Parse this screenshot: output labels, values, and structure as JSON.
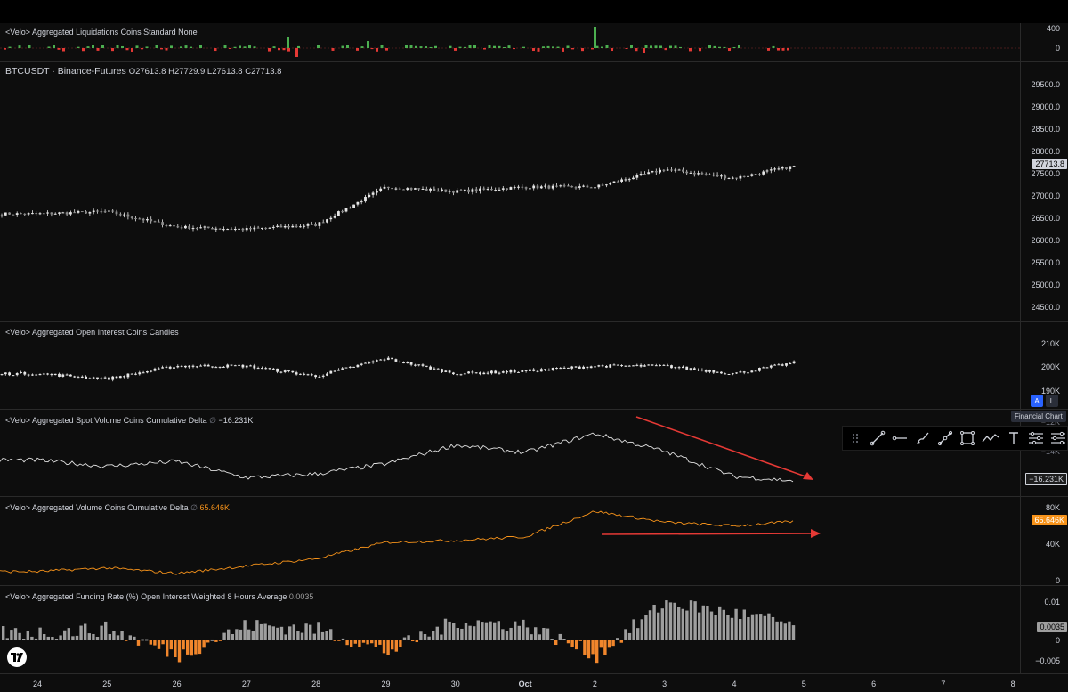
{
  "panes": {
    "liquidations": {
      "title": "<Velo> Aggregated Liquidations Coins Standard None",
      "ticks": [
        "400",
        "0"
      ]
    },
    "price": {
      "symbol": "BTCUSDT · Binance-Futures",
      "open_label": "O",
      "open": "27613.8",
      "high_label": "H",
      "high": "27729.9",
      "low_label": "L",
      "low": "27613.8",
      "close_label": "C",
      "close": "27713.8",
      "last_tag": "27713.8",
      "ticks": [
        "29500.0",
        "29000.0",
        "28500.0",
        "28000.0",
        "27500.0",
        "27000.0",
        "26500.0",
        "26000.0",
        "25500.0",
        "25000.0",
        "24500.0"
      ]
    },
    "open_interest": {
      "title": "<Velo> Aggregated Open Interest Coins Candles",
      "ticks": [
        "210K",
        "200K",
        "190K"
      ]
    },
    "spot_cvd": {
      "title": "<Velo> Aggregated Spot Volume Coins Cumulative Delta",
      "value": "−16.231K",
      "ticks": [
        "−12K",
        "−14K"
      ],
      "last_tag": "−16.231K"
    },
    "volume_cvd": {
      "title": "<Velo> Aggregated Volume Coins Cumulative Delta",
      "value": "65.646K",
      "ticks": [
        "80K",
        "40K",
        "0"
      ],
      "last_tag": "65.646K"
    },
    "funding": {
      "title": "<Velo> Aggregated Funding Rate (%) Open Interest Weighted 8 Hours Average",
      "value": "0.0035",
      "ticks": [
        "0.01",
        "0",
        "−0.005"
      ],
      "last_tag": "0.0035"
    }
  },
  "xaxis": {
    "labels": [
      "24",
      "25",
      "26",
      "27",
      "28",
      "29",
      "30",
      "Oct",
      "2",
      "3",
      "4",
      "5",
      "6",
      "7",
      "8"
    ]
  },
  "toolbar": {
    "tooltip": "Financial Chart",
    "auto_label": "A",
    "log_label": "L",
    "tools": [
      "trend-line-icon",
      "horizontal-ray-icon",
      "brush-icon",
      "connected-line-icon",
      "rectangle-icon",
      "path-icon",
      "text-icon",
      "settings-icon",
      "more-settings-icon"
    ]
  },
  "colors": {
    "up": "#26a69a",
    "down": "#ef5350",
    "candle": "#e6e6e6",
    "orange": "#f7931a",
    "funding_pos": "#9e9e9e",
    "funding_neg": "#f0862c",
    "arrow": "#e53935",
    "liq_green": "#4caf50",
    "liq_red": "#e53935"
  },
  "chart_data": [
    {
      "type": "line",
      "title": "BTCUSDT · Binance-Futures",
      "x": [
        "24",
        "25",
        "26",
        "27",
        "28",
        "29",
        "30",
        "Oct",
        "2",
        "3",
        "4",
        "5"
      ],
      "series": [
        {
          "name": "BTCUSDT",
          "values": [
            26600,
            26650,
            26300,
            26250,
            26350,
            27200,
            27100,
            27200,
            27200,
            27600,
            27400,
            27714
          ]
        }
      ],
      "ylim": [
        24300,
        29800
      ]
    },
    {
      "type": "line",
      "title": "<Velo> Aggregated Open Interest Coins Candles",
      "x": [
        "24",
        "25",
        "26",
        "27",
        "28",
        "29",
        "30",
        "Oct",
        "2",
        "3",
        "4",
        "5"
      ],
      "series": [
        {
          "name": "<Velo> Aggregated Open Interest Coins Candles",
          "values": [
            198000,
            196000,
            201000,
            201000,
            197000,
            204000,
            198000,
            199000,
            201000,
            201000,
            198000,
            203000
          ]
        }
      ],
      "ylim": [
        187000,
        215000
      ]
    },
    {
      "type": "line",
      "title": "<Velo> Aggregated Spot Volume Coins Cumulative Delta",
      "x": [
        "24",
        "25",
        "26",
        "27",
        "28",
        "29",
        "30",
        "Oct",
        "2",
        "3",
        "4",
        "5"
      ],
      "series": [
        {
          "name": "<Velo> Aggregated Spot Volume Coins Cumulative Delta",
          "values": [
            -14.5,
            -15.0,
            -14.6,
            -15.9,
            -15.6,
            -14.8,
            -13.3,
            -13.9,
            -12.4,
            -13.8,
            -15.8,
            -16.2
          ]
        }
      ],
      "ylim": [
        -17,
        -11
      ]
    },
    {
      "type": "line",
      "title": "<Velo> Aggregated Volume Coins Cumulative Delta",
      "x": [
        "24",
        "25",
        "26",
        "27",
        "28",
        "29",
        "30",
        "Oct",
        "2",
        "3",
        "4",
        "5"
      ],
      "series": [
        {
          "name": "<Velo> Aggregated Volume Coins Cumulative Delta",
          "values": [
            10,
            14,
            8,
            16,
            24,
            42,
            44,
            48,
            76,
            64,
            60,
            65.6
          ]
        }
      ],
      "ylim": [
        -5,
        90
      ]
    },
    {
      "type": "bar",
      "title": "<Velo> Aggregated Funding Rate (%) Open Interest Weighted 8 Hours Average",
      "x": [
        "24",
        "25",
        "26",
        "27",
        "28",
        "29",
        "30",
        "Oct",
        "2",
        "3",
        "4",
        "5"
      ],
      "values": [
        0.002,
        0.003,
        -0.004,
        0.004,
        0.003,
        -0.003,
        0.005,
        0.004,
        -0.004,
        0.01,
        0.007,
        0.0035
      ],
      "ylim": [
        -0.0065,
        0.0125
      ]
    }
  ]
}
